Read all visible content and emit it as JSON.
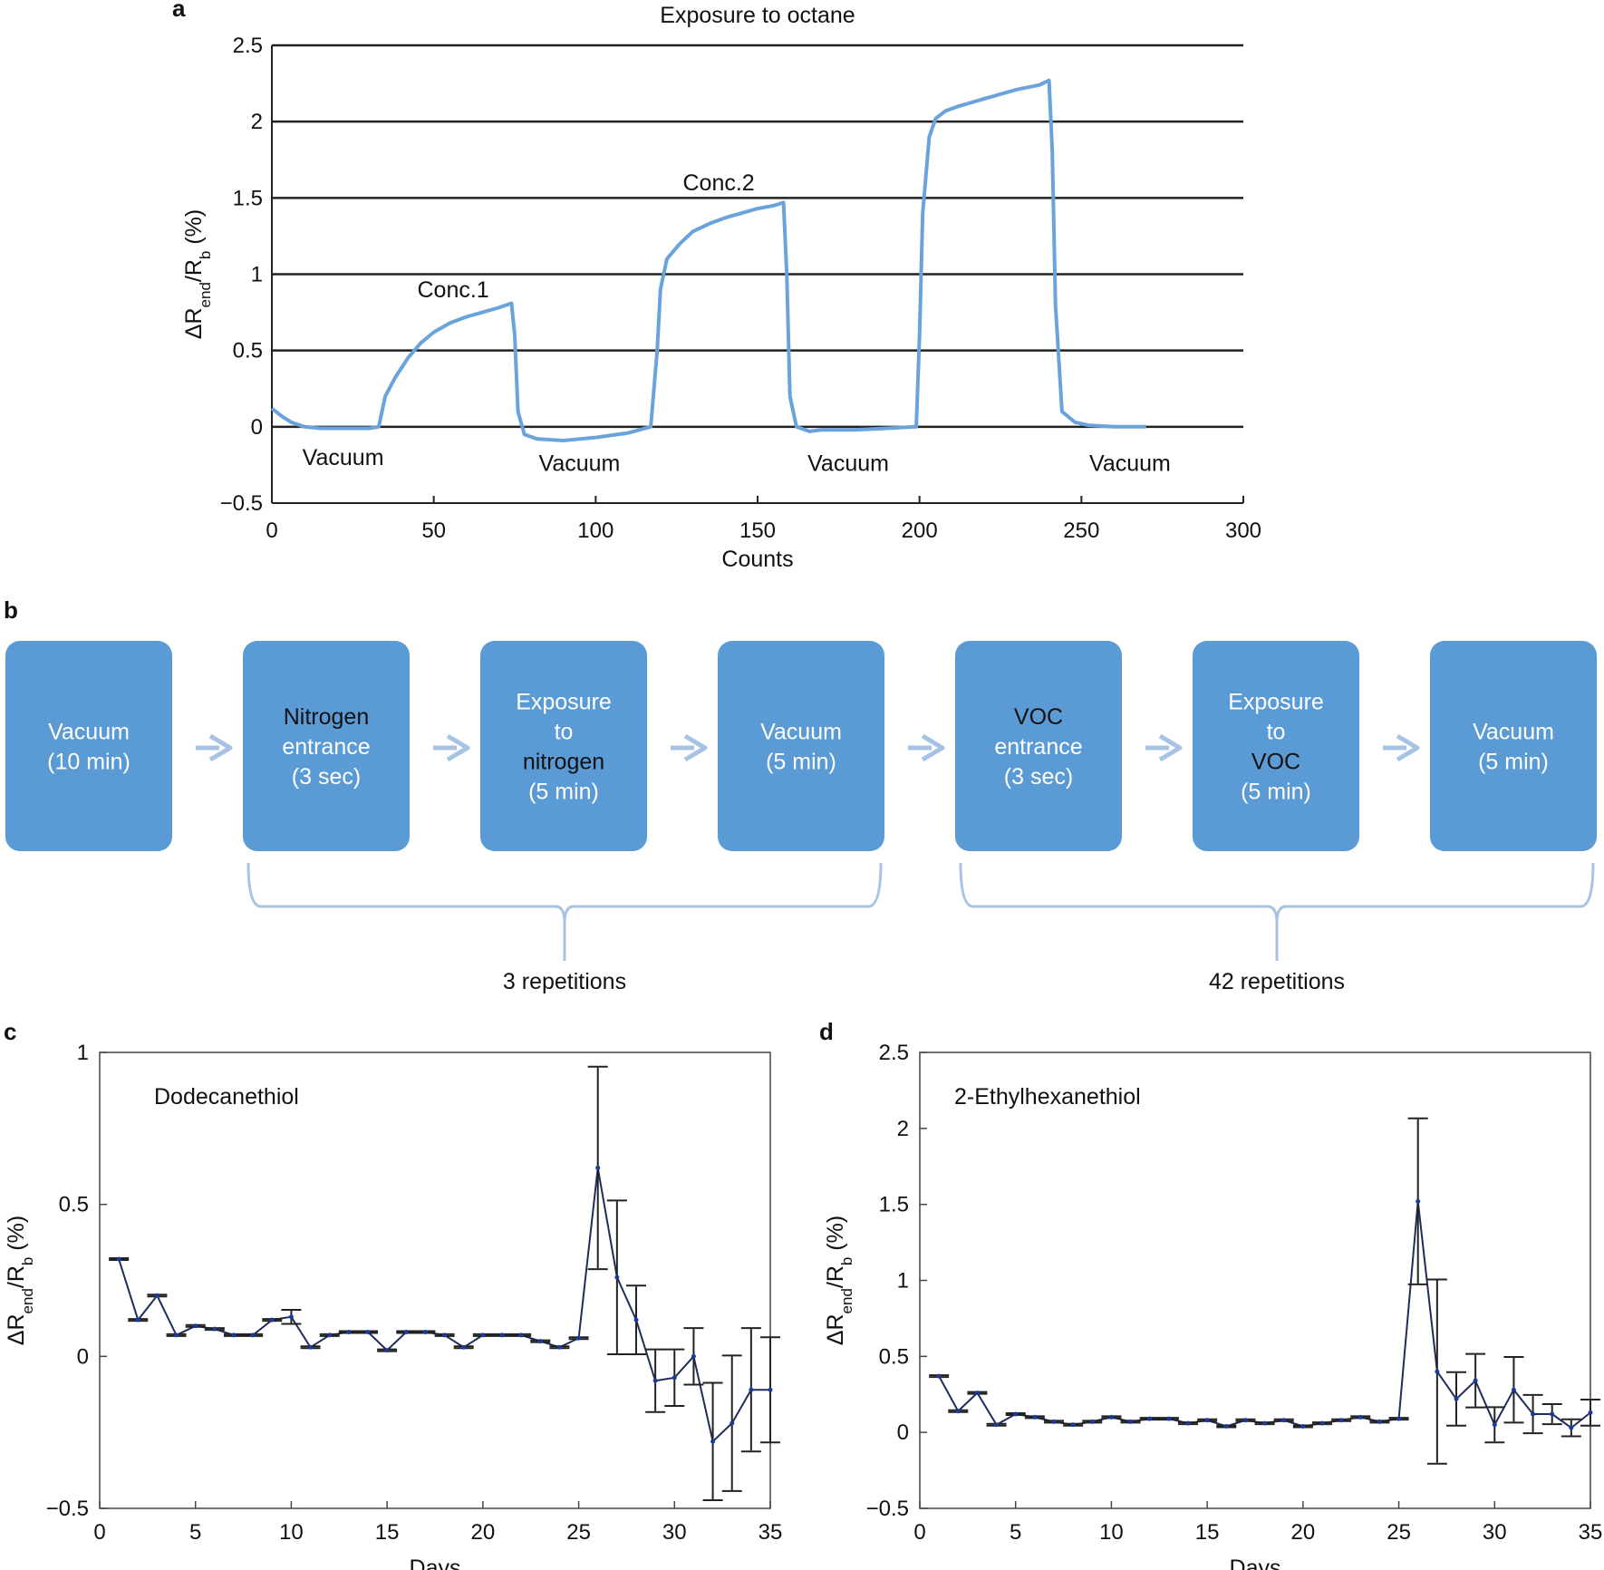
{
  "panel_labels": {
    "a": "a",
    "b": "b",
    "c": "c",
    "d": "d"
  },
  "chart_data": [
    {
      "id": "a",
      "type": "line",
      "title": "Exposure to octane",
      "xlabel": "Counts",
      "ylabel_parts": {
        "main": "ΔR",
        "sub1": "end",
        "mid": "/R",
        "sub2": "b",
        "tail": " (%)"
      },
      "xlim": [
        0,
        300
      ],
      "ylim": [
        -0.5,
        2.5
      ],
      "xticks": [
        0,
        50,
        100,
        150,
        200,
        250,
        300
      ],
      "yticks": [
        -0.5,
        0,
        0.5,
        1,
        1.5,
        2,
        2.5
      ],
      "ytick_labels": [
        "−0.5",
        "0",
        "0.5",
        "1",
        "1.5",
        "2",
        "2.5"
      ],
      "grid": "horizontal",
      "line_color": "#6aa3dc",
      "series": [
        {
          "name": "octane response",
          "x": [
            0,
            3,
            6,
            10,
            15,
            20,
            25,
            30,
            33,
            35,
            38,
            42,
            46,
            50,
            55,
            60,
            65,
            70,
            74,
            75,
            76,
            78,
            82,
            90,
            100,
            110,
            117,
            119,
            120,
            122,
            126,
            130,
            135,
            140,
            145,
            150,
            155,
            158,
            159,
            160,
            162,
            166,
            170,
            180,
            190,
            199,
            200,
            201,
            203,
            205,
            208,
            212,
            220,
            230,
            237,
            240,
            241,
            242,
            244,
            248,
            252,
            260,
            270
          ],
          "y": [
            0.12,
            0.07,
            0.03,
            0.0,
            -0.01,
            -0.01,
            -0.01,
            -0.01,
            0.0,
            0.2,
            0.32,
            0.45,
            0.55,
            0.62,
            0.68,
            0.72,
            0.75,
            0.78,
            0.81,
            0.6,
            0.1,
            -0.05,
            -0.08,
            -0.09,
            -0.07,
            -0.04,
            0.0,
            0.5,
            0.9,
            1.1,
            1.2,
            1.28,
            1.33,
            1.37,
            1.4,
            1.43,
            1.45,
            1.47,
            1.0,
            0.2,
            0.0,
            -0.03,
            -0.02,
            -0.02,
            -0.01,
            0.0,
            0.6,
            1.4,
            1.9,
            2.02,
            2.07,
            2.1,
            2.15,
            2.21,
            2.24,
            2.27,
            1.8,
            0.8,
            0.1,
            0.03,
            0.01,
            0.0,
            0.0
          ]
        }
      ],
      "annotations": [
        {
          "text": "Conc.1",
          "x": 56,
          "y": 0.85
        },
        {
          "text": "Conc.2",
          "x": 138,
          "y": 1.55
        },
        {
          "text": "Vacuum",
          "x": 22,
          "y": -0.25
        },
        {
          "text": "Vacuum",
          "x": 95,
          "y": -0.29
        },
        {
          "text": "Vacuum",
          "x": 178,
          "y": -0.29
        },
        {
          "text": "Vacuum",
          "x": 265,
          "y": -0.29
        }
      ]
    },
    {
      "id": "c",
      "type": "line",
      "title": "Dodecanethiol",
      "xlabel": "Days",
      "ylabel_parts": {
        "main": "ΔR",
        "sub1": "end",
        "mid": "/R",
        "sub2": "b",
        "tail": " (%)"
      },
      "xlim": [
        0,
        35
      ],
      "ylim": [
        -0.5,
        1
      ],
      "xticks": [
        0,
        5,
        10,
        15,
        20,
        25,
        30,
        35
      ],
      "yticks": [
        -0.5,
        0,
        0.5,
        1
      ],
      "ytick_labels": [
        "−0.5",
        "0",
        "0.5",
        "1"
      ],
      "grid": "off",
      "series": [
        {
          "name": "Dodecanethiol",
          "x": [
            1,
            2,
            3,
            4,
            5,
            6,
            7,
            8,
            9,
            10,
            11,
            12,
            13,
            14,
            15,
            16,
            17,
            18,
            19,
            20,
            21,
            22,
            23,
            24,
            25,
            26,
            27,
            28,
            29,
            30,
            31,
            32,
            33,
            34,
            35
          ],
          "y": [
            0.32,
            0.12,
            0.2,
            0.07,
            0.1,
            0.09,
            0.07,
            0.07,
            0.12,
            0.13,
            0.03,
            0.07,
            0.08,
            0.08,
            0.02,
            0.08,
            0.08,
            0.07,
            0.03,
            0.07,
            0.07,
            0.07,
            0.05,
            0.03,
            0.06,
            0.62,
            0.26,
            0.12,
            -0.08,
            -0.07,
            0.0,
            -0.28,
            -0.22,
            -0.11,
            -0.11
          ],
          "err": [
            0.0,
            0.0,
            0.0,
            0.0,
            0.0,
            0.0,
            0.0,
            0.0,
            0.0,
            0.02,
            0.0,
            0.0,
            0.0,
            0.0,
            0.0,
            0.0,
            0.0,
            0.0,
            0.0,
            0.0,
            0.0,
            0.0,
            0.0,
            0.0,
            0.0,
            0.33,
            0.25,
            0.11,
            0.1,
            0.09,
            0.09,
            0.19,
            0.22,
            0.2,
            0.17
          ]
        }
      ]
    },
    {
      "id": "d",
      "type": "line",
      "title": "2-Ethylhexanethiol",
      "xlabel": "Days",
      "ylabel_parts": {
        "main": "ΔR",
        "sub1": "end",
        "mid": "/R",
        "sub2": "b",
        "tail": " (%)"
      },
      "xlim": [
        0,
        35
      ],
      "ylim": [
        -0.5,
        2.5
      ],
      "xticks": [
        0,
        5,
        10,
        15,
        20,
        25,
        30,
        35
      ],
      "yticks": [
        -0.5,
        0,
        0.5,
        1,
        1.5,
        2,
        2.5
      ],
      "ytick_labels": [
        "−0.5",
        "0",
        "0.5",
        "1",
        "1.5",
        "2",
        "2.5"
      ],
      "grid": "off",
      "series": [
        {
          "name": "2-Ethylhexanethiol",
          "x": [
            1,
            2,
            3,
            4,
            5,
            6,
            7,
            8,
            9,
            10,
            11,
            12,
            13,
            14,
            15,
            16,
            17,
            18,
            19,
            20,
            21,
            22,
            23,
            24,
            25,
            26,
            27,
            28,
            29,
            30,
            31,
            32,
            33,
            34,
            35
          ],
          "y": [
            0.37,
            0.14,
            0.26,
            0.05,
            0.12,
            0.1,
            0.07,
            0.05,
            0.07,
            0.1,
            0.07,
            0.09,
            0.09,
            0.06,
            0.08,
            0.04,
            0.08,
            0.06,
            0.08,
            0.04,
            0.06,
            0.08,
            0.1,
            0.07,
            0.09,
            1.52,
            0.4,
            0.22,
            0.34,
            0.05,
            0.28,
            0.12,
            0.12,
            0.03,
            0.13
          ],
          "err": [
            0.0,
            0.0,
            0.0,
            0.0,
            0.0,
            0.0,
            0.0,
            0.0,
            0.0,
            0.0,
            0.0,
            0.0,
            0.0,
            0.0,
            0.0,
            0.0,
            0.0,
            0.0,
            0.0,
            0.0,
            0.0,
            0.0,
            0.0,
            0.0,
            0.0,
            0.54,
            0.6,
            0.17,
            0.17,
            0.11,
            0.21,
            0.12,
            0.06,
            0.05,
            0.08
          ]
        }
      ]
    }
  ],
  "flow": {
    "box_color": "#5b9bd5",
    "arrow_color": "#a6c3e6",
    "steps": [
      {
        "lines": [
          "Vacuum",
          "(10 min)"
        ],
        "dark_lines": []
      },
      {
        "lines": [
          "Nitrogen",
          "entrance",
          "(3 sec)"
        ],
        "dark_lines": [
          0
        ]
      },
      {
        "lines": [
          "Exposure",
          "to",
          "nitrogen",
          "(5 min)"
        ],
        "dark_lines": [
          2
        ]
      },
      {
        "lines": [
          "Vacuum",
          "(5 min)"
        ],
        "dark_lines": []
      },
      {
        "lines": [
          "VOC",
          "entrance",
          "(3 sec)"
        ],
        "dark_lines": [
          0
        ]
      },
      {
        "lines": [
          "Exposure",
          "to",
          "VOC",
          "(5 min)"
        ],
        "dark_lines": [
          2
        ]
      },
      {
        "lines": [
          "Vacuum",
          "(5 min)"
        ],
        "dark_lines": []
      }
    ],
    "braces": [
      {
        "label": "3 repetitions",
        "from_step": 1,
        "to_step": 3
      },
      {
        "label": "42 repetitions",
        "from_step": 4,
        "to_step": 6
      }
    ]
  }
}
